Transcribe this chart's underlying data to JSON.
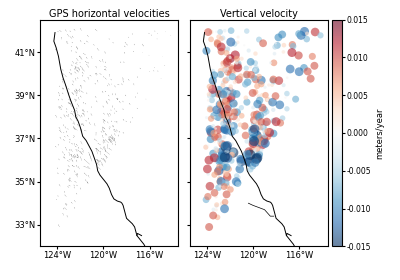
{
  "title_left": "GPS horizontal velocities",
  "title_right": "Vertical velocity",
  "colorbar_label": "meters/year",
  "lon_min": -125.5,
  "lon_max": -113.5,
  "lat_min": 32.0,
  "lat_max": 42.5,
  "xticks": [
    -124,
    -120,
    -116
  ],
  "yticks": [
    33,
    35,
    37,
    39,
    41
  ],
  "xtick_labels": [
    "124°W",
    "120°W",
    "116°W"
  ],
  "ytick_labels": [
    "33°N",
    "35°N",
    "37°N",
    "39°N",
    "41°N"
  ],
  "cmap": "RdBu_r",
  "vmin": -0.015,
  "vmax": 0.015,
  "colorbar_ticks": [
    0.015,
    0.01,
    0.005,
    0.0,
    -0.005,
    -0.01,
    -0.015
  ],
  "seed": 42
}
